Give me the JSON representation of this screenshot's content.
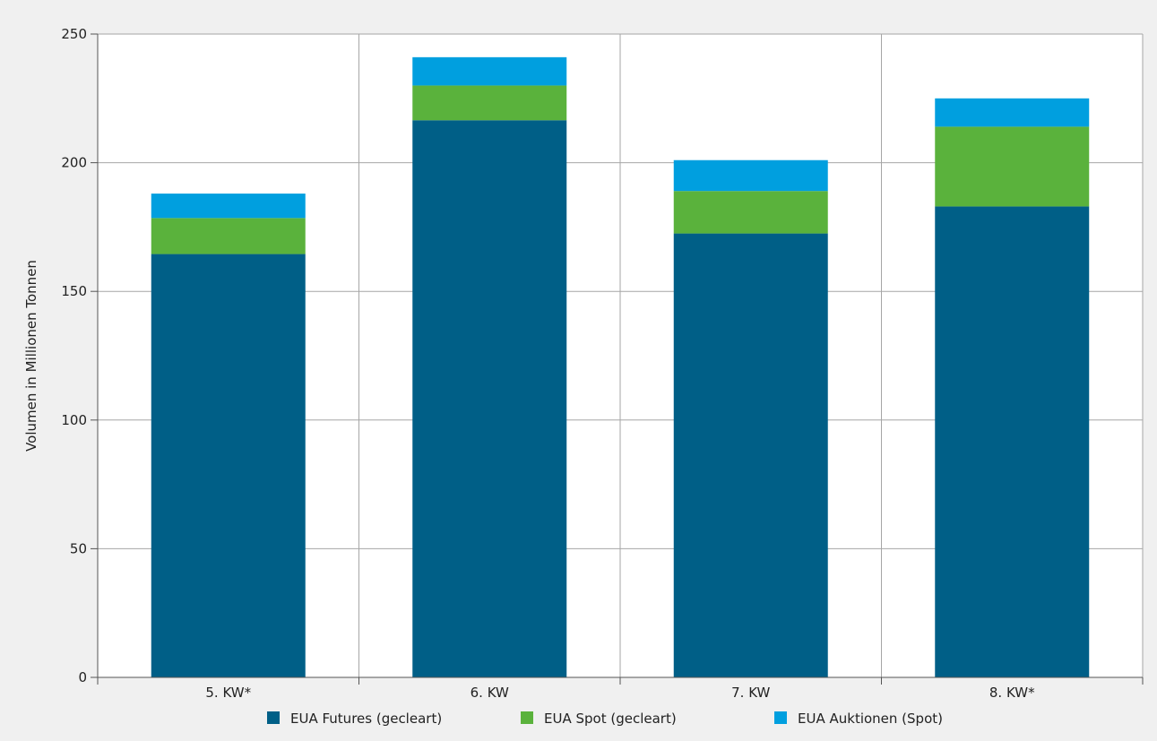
{
  "chart_data": {
    "type": "bar",
    "stacked": true,
    "categories": [
      "5. KW*",
      "6. KW",
      "7. KW",
      "8. KW*"
    ],
    "series": [
      {
        "name": "EUA Futures (gecleart)",
        "color": "#005f87",
        "values": [
          164.5,
          216.5,
          172.5,
          183
        ]
      },
      {
        "name": "EUA Spot (gecleart)",
        "color": "#5ab23c",
        "values": [
          14,
          13.5,
          16.5,
          31
        ]
      },
      {
        "name": "EUA Auktionen (Spot)",
        "color": "#009fdf",
        "values": [
          9.5,
          11,
          12,
          11
        ]
      }
    ],
    "ylabel": "Volumen in Millionen Tonnen",
    "ylim": [
      0,
      250
    ],
    "yticks": [
      0,
      50,
      100,
      150,
      200,
      250
    ],
    "grid": true,
    "legend": "bottom"
  }
}
